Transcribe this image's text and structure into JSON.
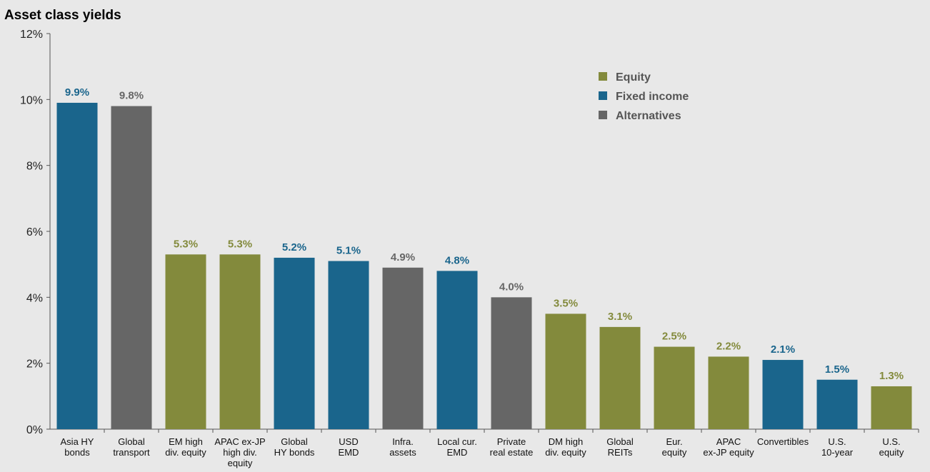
{
  "chart_data": {
    "type": "bar",
    "title": "Asset class yields",
    "ylim": [
      0,
      12
    ],
    "yticks": [
      "0%",
      "2%",
      "4%",
      "6%",
      "8%",
      "10%",
      "12%"
    ],
    "ytick_values": [
      0,
      2,
      4,
      6,
      8,
      10,
      12
    ],
    "grid": false,
    "legend_position": "top-right",
    "categories": [
      [
        "Asia HY",
        "bonds"
      ],
      [
        "Global",
        "transport"
      ],
      [
        "EM high",
        "div. equity"
      ],
      [
        "APAC ex-JP",
        "high div.",
        "equity"
      ],
      [
        "Global",
        "HY bonds"
      ],
      [
        "USD",
        "EMD"
      ],
      [
        "Infra.",
        "assets"
      ],
      [
        "Local cur.",
        "EMD"
      ],
      [
        "Private",
        "real estate"
      ],
      [
        "DM high",
        "div. equity"
      ],
      [
        "Global",
        "REITs"
      ],
      [
        "Eur.",
        "equity"
      ],
      [
        "APAC",
        "ex-JP equity"
      ],
      [
        "Convertibles"
      ],
      [
        "U.S.",
        "10-year"
      ],
      [
        "U.S.",
        "equity"
      ]
    ],
    "values": [
      9.9,
      9.8,
      5.3,
      5.3,
      5.2,
      5.1,
      4.9,
      4.8,
      4.0,
      3.5,
      3.1,
      2.5,
      2.2,
      2.1,
      1.5,
      1.3
    ],
    "labels": [
      "9.9%",
      "9.8%",
      "5.3%",
      "5.3%",
      "5.2%",
      "5.1%",
      "4.9%",
      "4.8%",
      "4.0%",
      "3.5%",
      "3.1%",
      "2.5%",
      "2.2%",
      "2.1%",
      "1.5%",
      "1.3%"
    ],
    "groups": [
      "Fixed income",
      "Alternatives",
      "Equity",
      "Equity",
      "Fixed income",
      "Fixed income",
      "Alternatives",
      "Fixed income",
      "Alternatives",
      "Equity",
      "Equity",
      "Equity",
      "Equity",
      "Fixed income",
      "Fixed income",
      "Equity"
    ],
    "legend": [
      {
        "name": "Equity",
        "color": "#838a3c"
      },
      {
        "name": "Fixed income",
        "color": "#1a658c"
      },
      {
        "name": "Alternatives",
        "color": "#666666"
      }
    ]
  }
}
